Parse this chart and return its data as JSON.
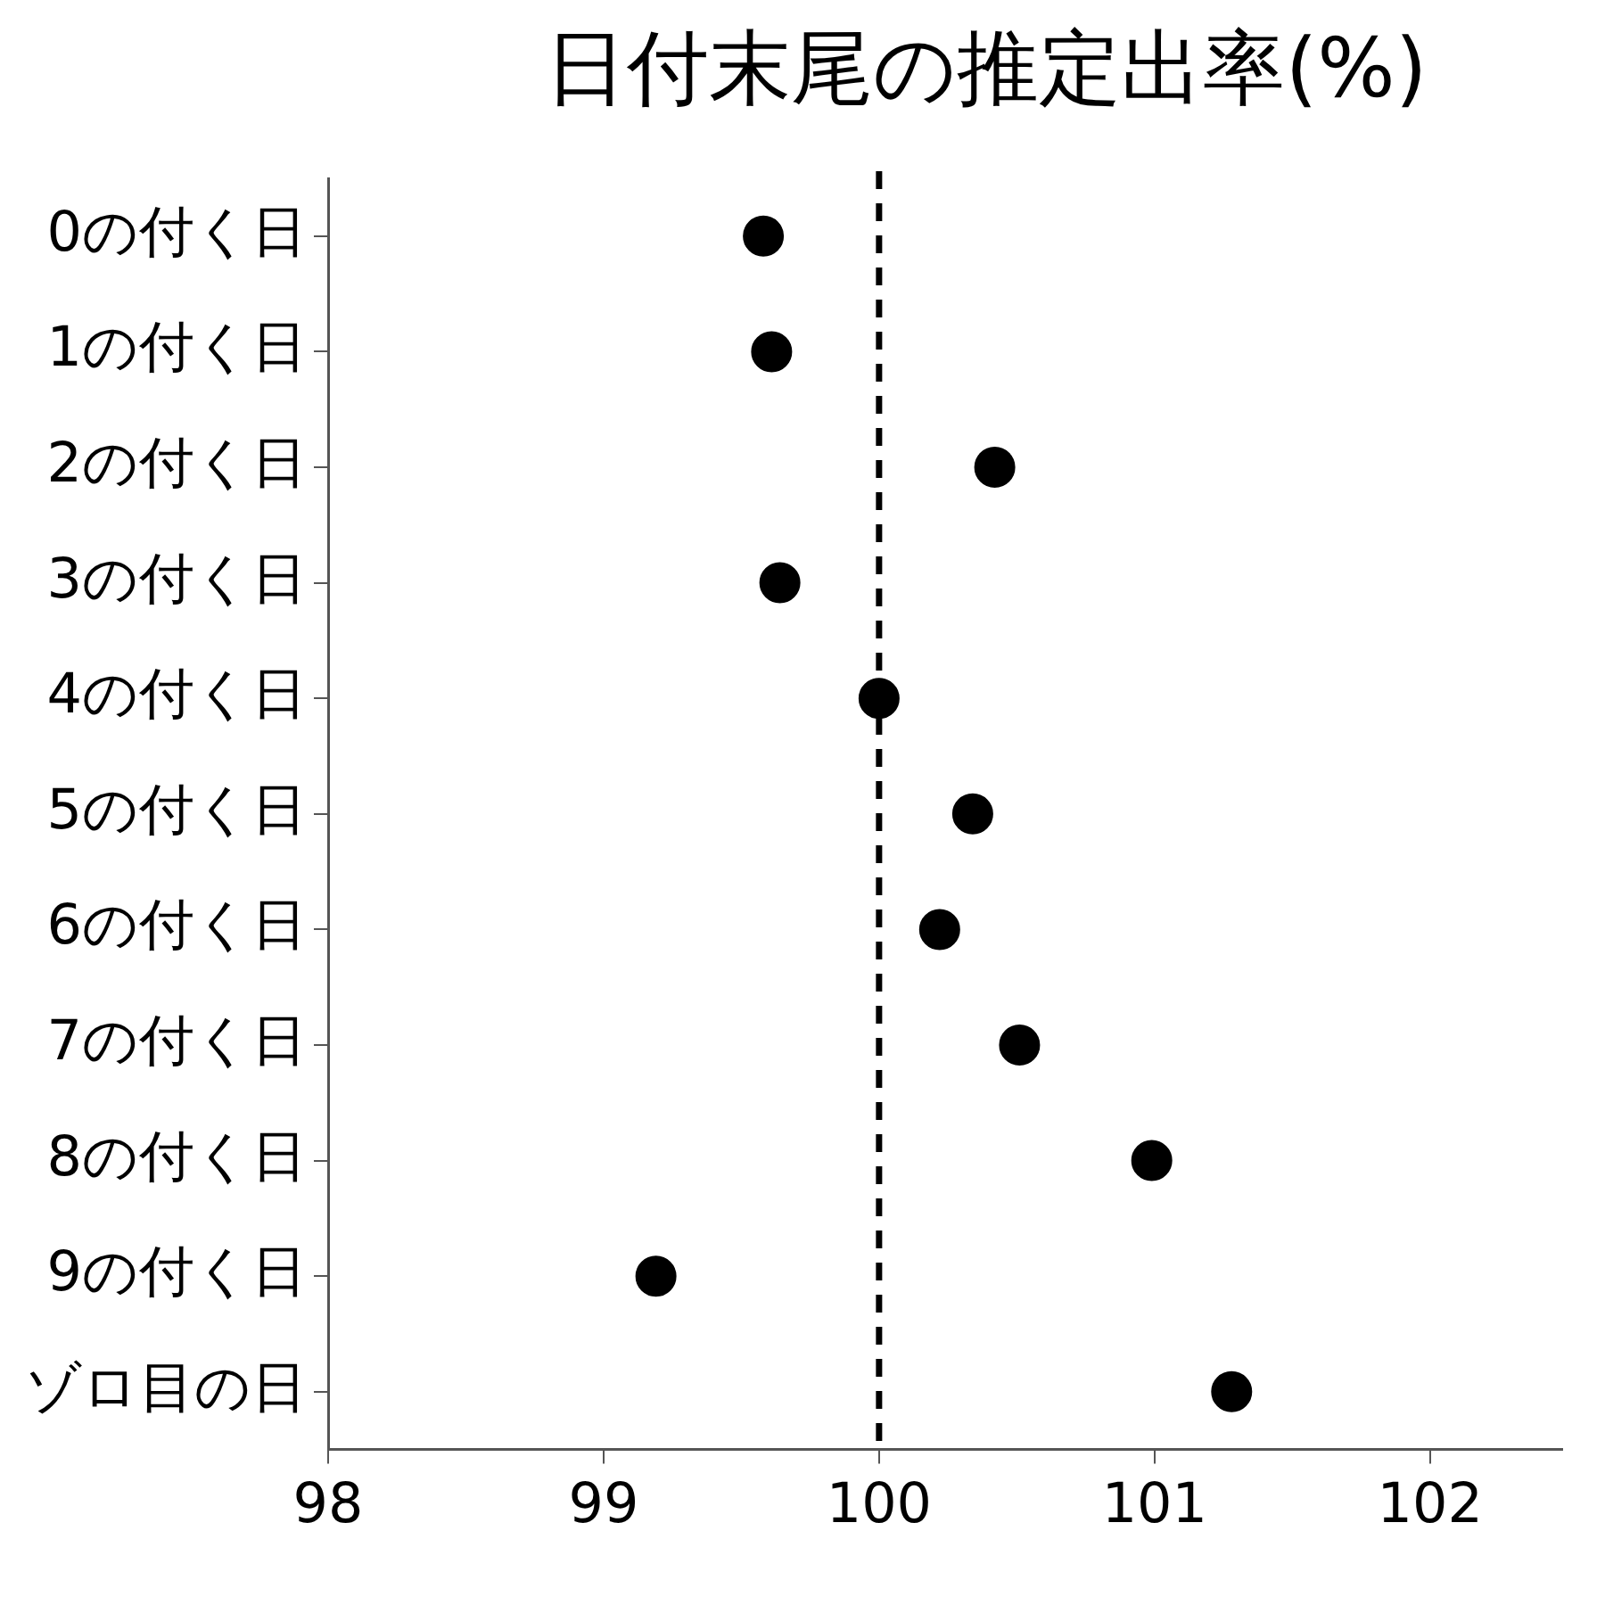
{
  "chart_data": {
    "type": "scatter",
    "orientation": "horizontal",
    "title": "日付末尾の推定出率(%)",
    "categories": [
      "0の付く日",
      "1の付く日",
      "2の付く日",
      "3の付く日",
      "4の付く日",
      "5の付く日",
      "6の付く日",
      "7の付く日",
      "8の付く日",
      "9の付く日",
      "ゾロ目の日"
    ],
    "series": [
      {
        "color": "#000000",
        "values": [
          99.58,
          99.61,
          100.42,
          99.64,
          100.0,
          100.34,
          100.22,
          100.51,
          100.99,
          99.19,
          101.28
        ]
      }
    ],
    "xlim": [
      98,
      102.48
    ],
    "xticks": [
      98,
      99,
      100,
      101,
      102
    ],
    "ref_lines": [
      {
        "axis": "x",
        "value": 100,
        "color": "#000000",
        "line_style": "dashed"
      }
    ],
    "marker": "circle",
    "grid": false,
    "legend": false
  }
}
